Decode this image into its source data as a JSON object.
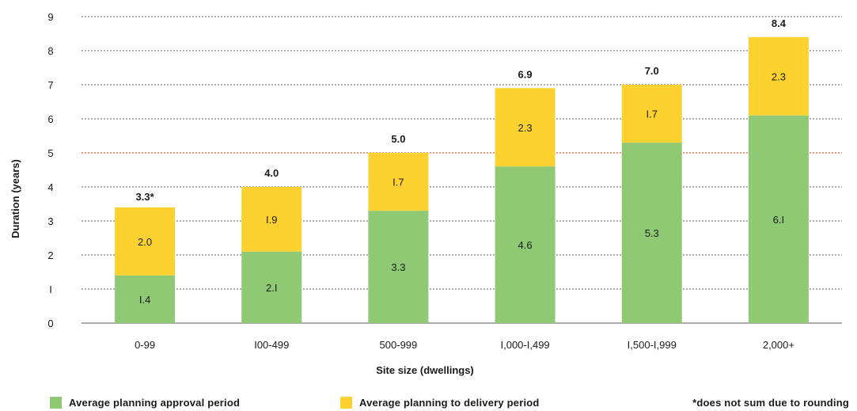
{
  "chart_data": {
    "type": "bar",
    "stacked": true,
    "xlabel": "Site size (dwellings)",
    "ylabel": "Duration (years)",
    "ylim": [
      0,
      9
    ],
    "yticks": [
      "0",
      "I",
      "2",
      "3",
      "4",
      "5",
      "6",
      "7",
      "8",
      "9"
    ],
    "reference_line": {
      "value": 5,
      "color": "#e8582e"
    },
    "categories": [
      "0-99",
      "I00-499",
      "500-999",
      "I,000-I,499",
      "I,500-I,999",
      "2,000+"
    ],
    "series": [
      {
        "name": "Average planning approval period",
        "color": "#8fc973",
        "values": [
          1.4,
          2.1,
          3.3,
          4.6,
          5.3,
          6.1
        ],
        "labels": [
          "I.4",
          "2.I",
          "3.3",
          "4.6",
          "5.3",
          "6.I"
        ]
      },
      {
        "name": "Average planning to delivery period",
        "color": "#fdd230",
        "values": [
          2.0,
          1.9,
          1.7,
          2.3,
          1.7,
          2.3
        ],
        "labels": [
          "2.0",
          "I.9",
          "I.7",
          "2.3",
          "I.7",
          "2.3"
        ]
      }
    ],
    "totals": [
      3.3,
      4.0,
      5.0,
      6.9,
      7.0,
      8.4
    ],
    "total_labels": [
      "3.3*",
      "4.0",
      "5.0",
      "6.9",
      "7.0",
      "8.4"
    ],
    "grid": true,
    "legend_position": "bottom",
    "note": "*does not sum due to rounding"
  }
}
